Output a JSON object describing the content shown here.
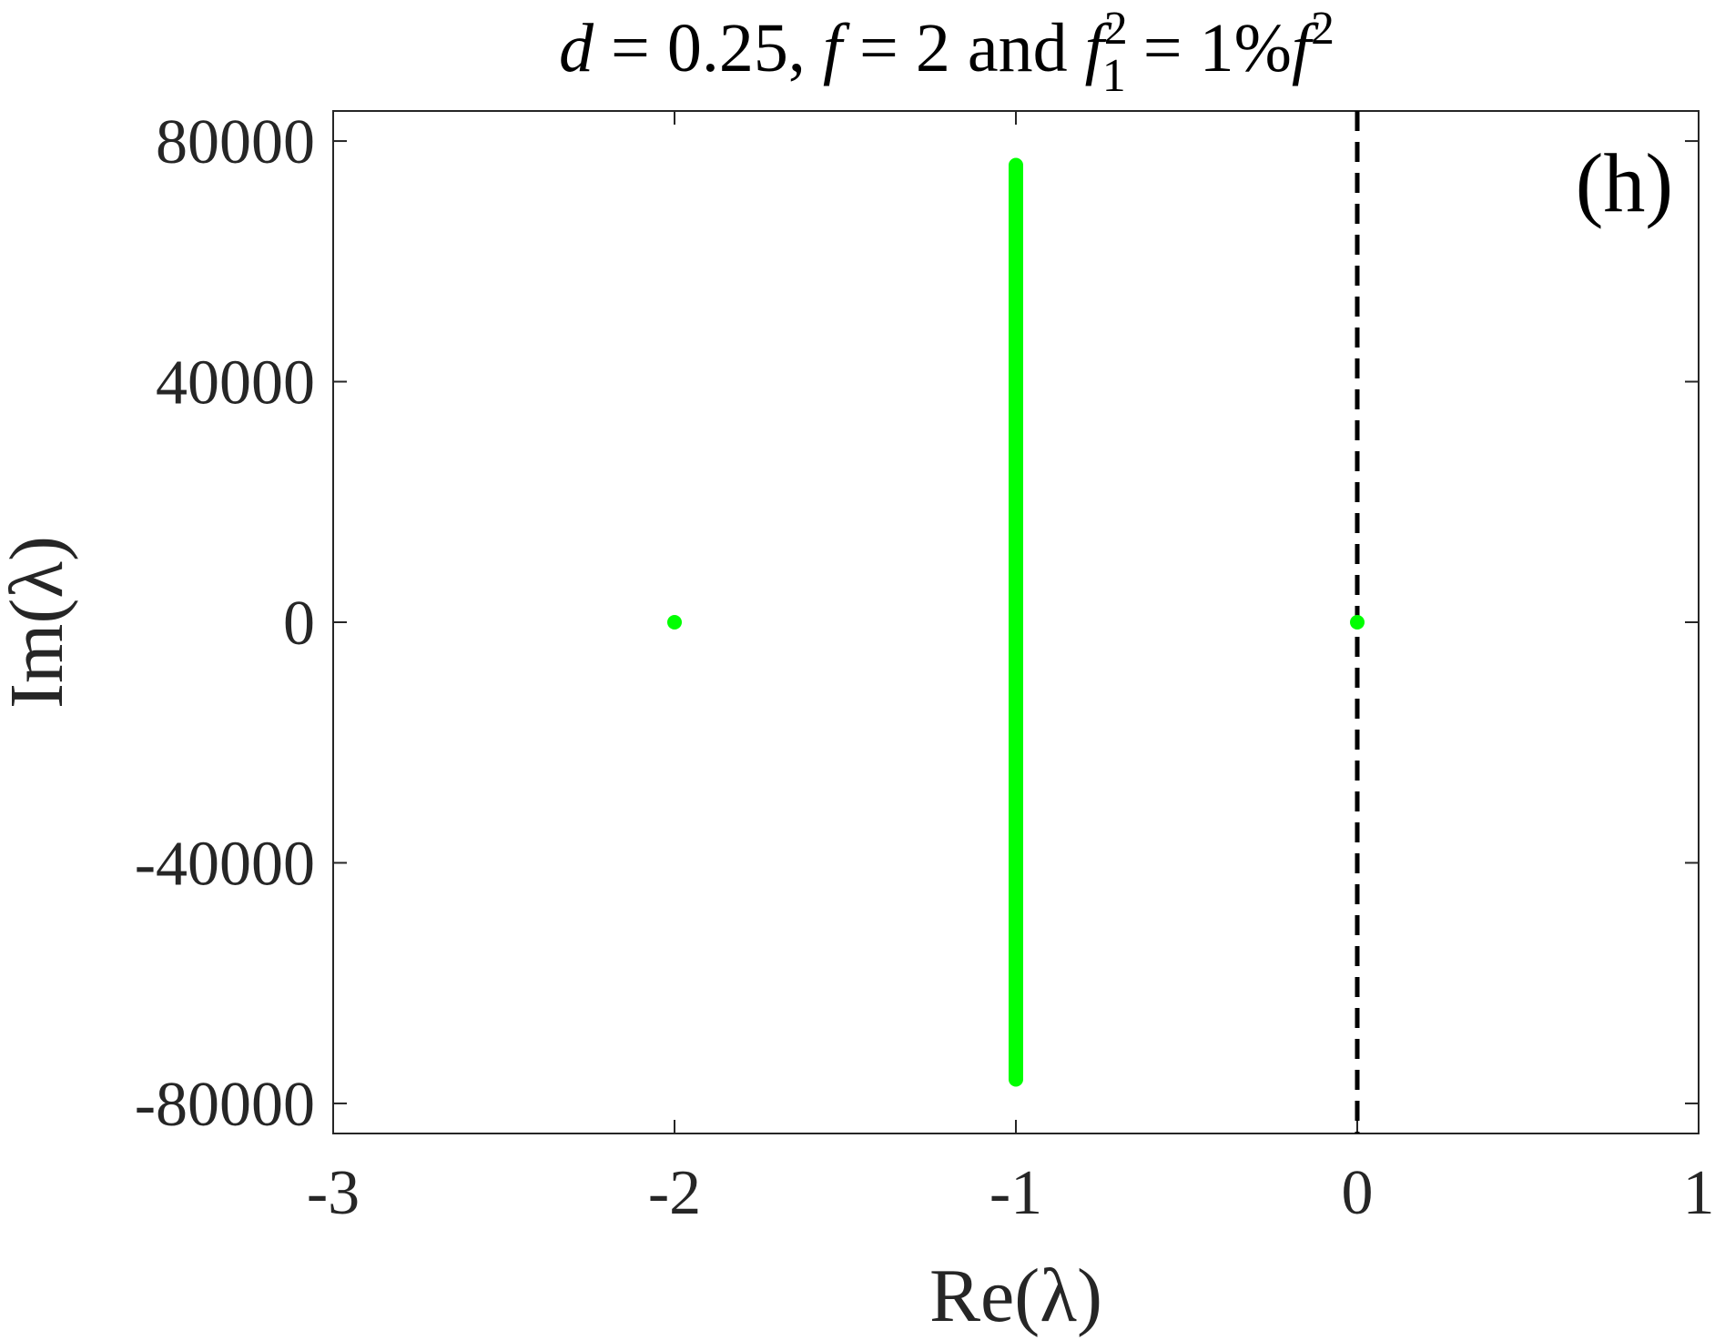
{
  "chart_data": {
    "type": "scatter",
    "title": "d = 0.25, f = 2 and f₁² = 1%f²",
    "title_parts": {
      "d": "d",
      "d_eq": " = 0.25, ",
      "f": "f",
      "f_eq": " = 2 and ",
      "f1": "f",
      "f1_sub": "1",
      "f1_sup": "2",
      "f1_eq": " = 1%",
      "f2": "f",
      "f2_sup": "2"
    },
    "panel_label": "(h)",
    "xlabel": "Re(λ)",
    "ylabel": "Im(λ)",
    "xlim": [
      -3,
      1
    ],
    "ylim": [
      -85000,
      85000
    ],
    "xticks": [
      -3,
      -2,
      -1,
      0,
      1
    ],
    "xtick_labels": [
      "-3",
      "-2",
      "-1",
      "0",
      "1"
    ],
    "yticks": [
      80000,
      40000,
      0,
      -40000,
      -80000
    ],
    "ytick_labels": [
      "80000",
      "40000",
      "0",
      "-40000",
      "-80000"
    ],
    "grid": false,
    "reference_line": {
      "x": 0,
      "style": "dashed",
      "color": "#000000"
    },
    "series": [
      {
        "color": "#00ff00",
        "points": [
          {
            "x": -2,
            "y": 0
          },
          {
            "x": 0,
            "y": 0
          }
        ],
        "vertical_band": {
          "x": -1,
          "y_min": -76000,
          "y_max": 76000
        }
      }
    ]
  }
}
